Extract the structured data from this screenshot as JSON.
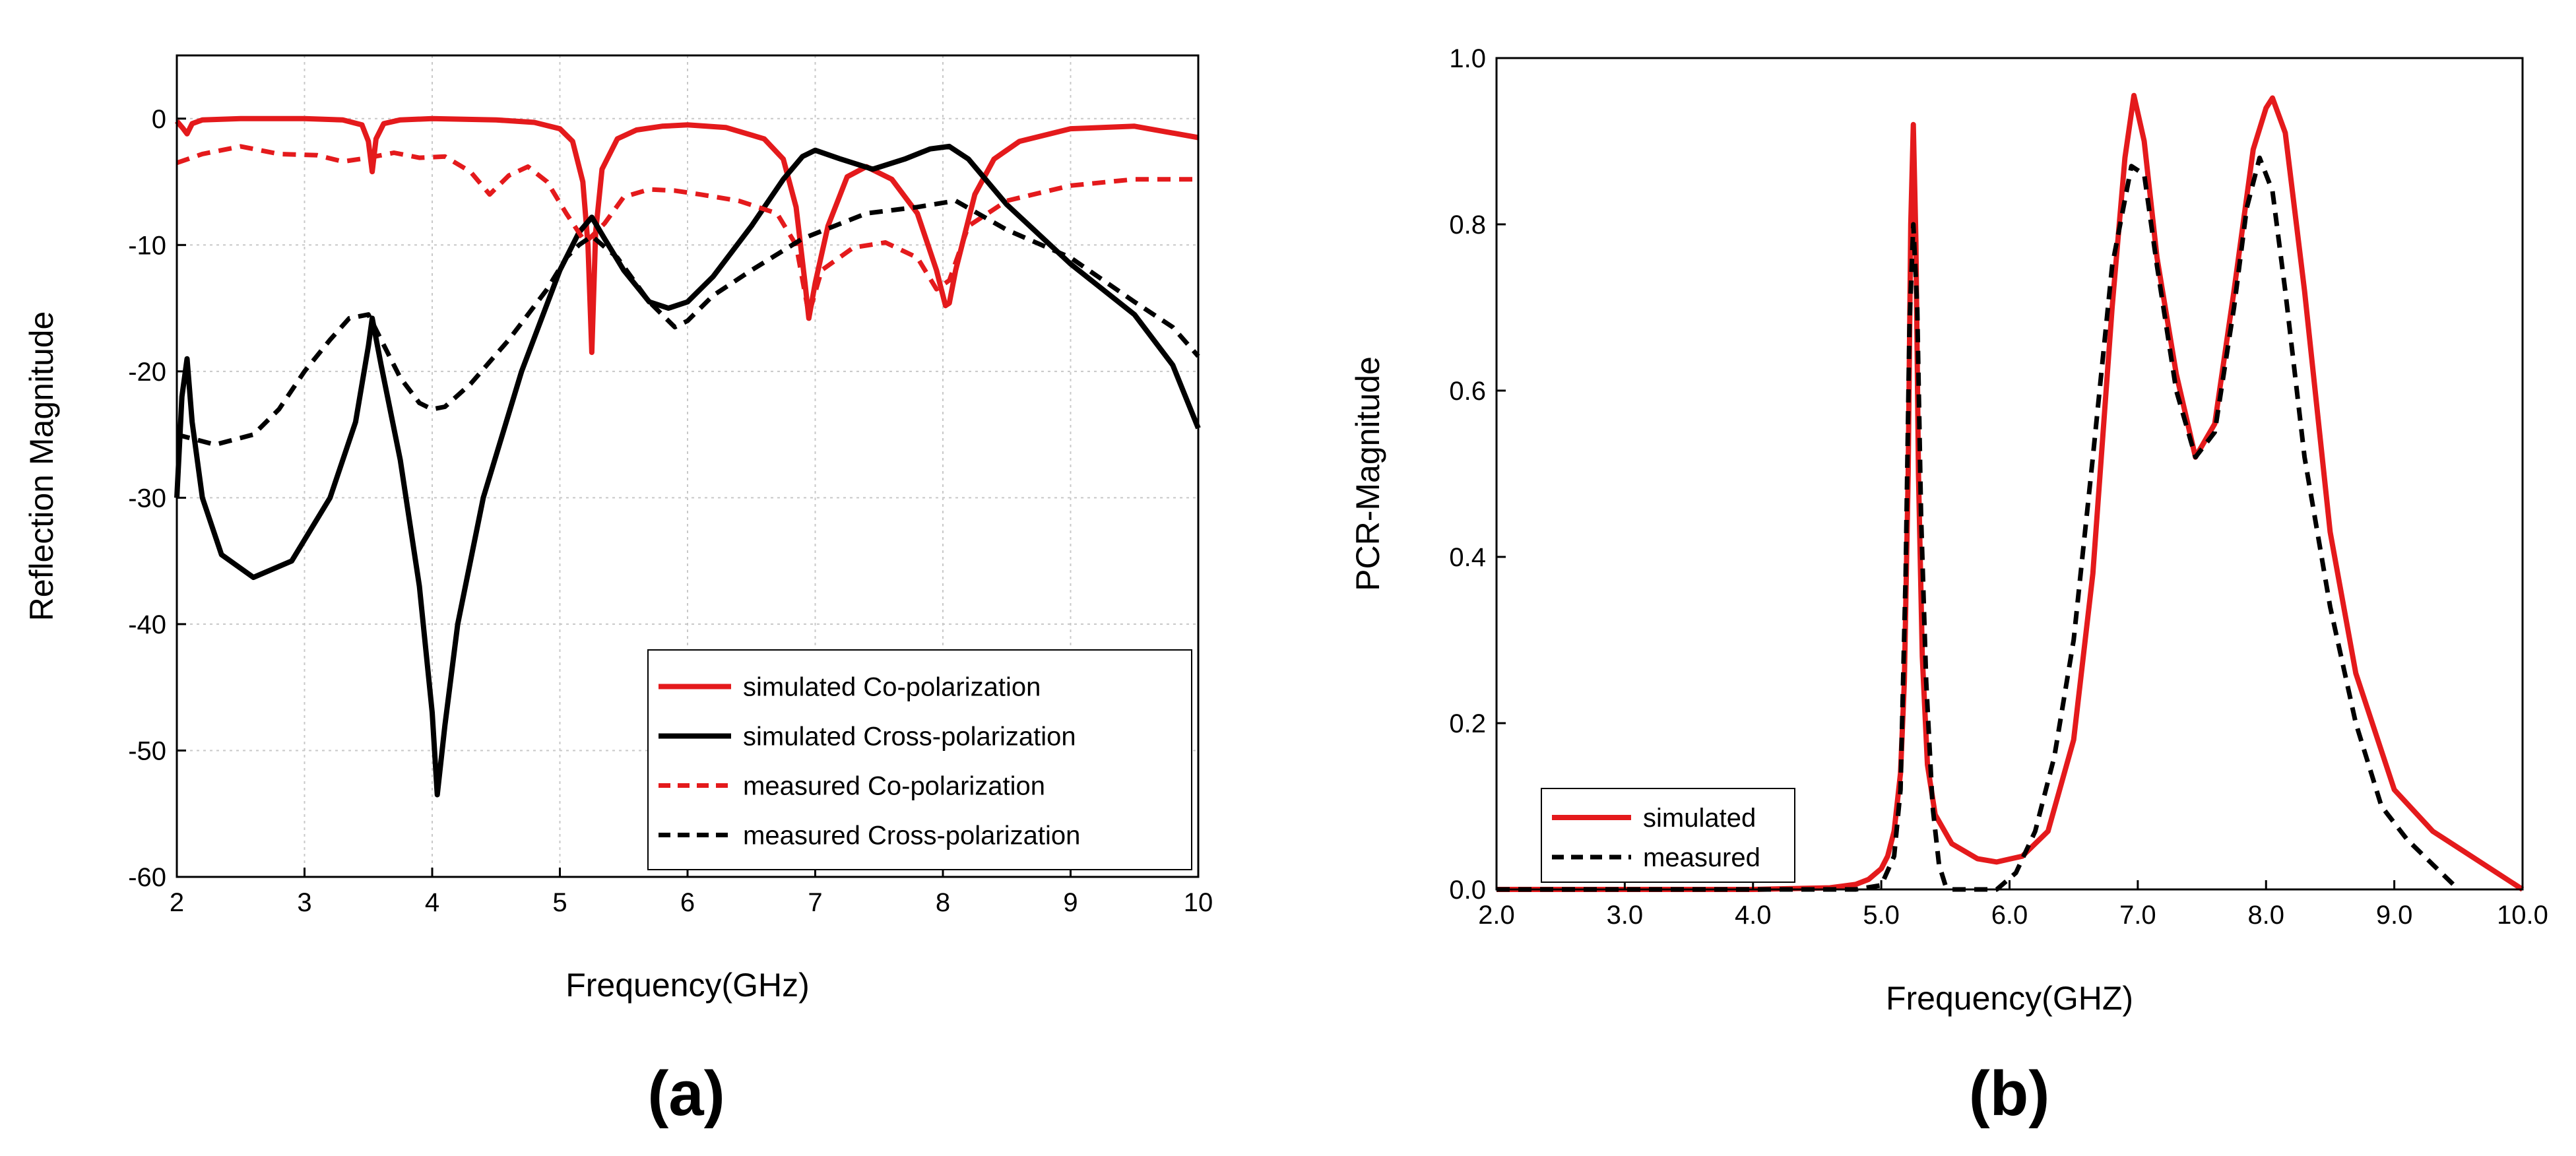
{
  "chart_data": [
    {
      "panel_label": "(a)",
      "type": "line",
      "xlabel": "Frequency(GHz)",
      "ylabel": "Reflection Magnitude",
      "xlim": [
        2,
        10
      ],
      "ylim": [
        -60,
        5
      ],
      "xticks": [
        2,
        3,
        4,
        5,
        6,
        7,
        8,
        9,
        10
      ],
      "yticks": [
        0,
        -10,
        -20,
        -30,
        -40,
        -50,
        -60
      ],
      "grid": true,
      "legend_position": "bottom-right",
      "series": [
        {
          "name": "simulated Co-polarization",
          "color": "#e41a1c",
          "style": "solid",
          "x": [
            2.0,
            2.05,
            2.08,
            2.12,
            2.2,
            2.5,
            3.0,
            3.3,
            3.45,
            3.5,
            3.53,
            3.56,
            3.62,
            3.75,
            4.0,
            4.5,
            4.8,
            5.0,
            5.1,
            5.18,
            5.22,
            5.25,
            5.28,
            5.33,
            5.45,
            5.6,
            5.8,
            6.0,
            6.3,
            6.6,
            6.75,
            6.85,
            6.92,
            6.95,
            7.0,
            7.1,
            7.25,
            7.4,
            7.6,
            7.8,
            7.95,
            8.02,
            8.05,
            8.1,
            8.25,
            8.4,
            8.6,
            9.0,
            9.5,
            10.0
          ],
          "y": [
            -0.2,
            -0.8,
            -1.2,
            -0.4,
            -0.1,
            0.0,
            0.0,
            -0.1,
            -0.5,
            -1.8,
            -4.2,
            -1.6,
            -0.4,
            -0.1,
            0.0,
            -0.1,
            -0.3,
            -0.8,
            -1.8,
            -5.0,
            -10.0,
            -18.5,
            -9.0,
            -4.0,
            -1.6,
            -0.9,
            -0.6,
            -0.5,
            -0.7,
            -1.6,
            -3.2,
            -7.0,
            -13.0,
            -15.8,
            -13.0,
            -8.5,
            -4.6,
            -3.8,
            -4.8,
            -7.5,
            -12.0,
            -14.8,
            -14.6,
            -12.0,
            -6.0,
            -3.2,
            -1.8,
            -0.8,
            -0.6,
            -1.5
          ]
        },
        {
          "name": "simulated Cross-polarization",
          "color": "#000000",
          "style": "solid",
          "x": [
            2.0,
            2.04,
            2.08,
            2.12,
            2.2,
            2.35,
            2.6,
            2.9,
            3.2,
            3.4,
            3.5,
            3.53,
            3.6,
            3.75,
            3.9,
            4.0,
            4.04,
            4.1,
            4.2,
            4.4,
            4.7,
            5.0,
            5.15,
            5.25,
            5.35,
            5.5,
            5.7,
            5.85,
            6.0,
            6.2,
            6.5,
            6.75,
            6.9,
            7.0,
            7.2,
            7.45,
            7.7,
            7.9,
            8.05,
            8.2,
            8.5,
            9.0,
            9.5,
            9.8,
            10.0
          ],
          "y": [
            -30.0,
            -22.0,
            -19.0,
            -24.0,
            -30.0,
            -34.5,
            -36.3,
            -35.0,
            -30.0,
            -24.0,
            -18.0,
            -15.8,
            -19.5,
            -27.0,
            -37.0,
            -47.0,
            -53.5,
            -48.0,
            -40.0,
            -30.0,
            -20.0,
            -12.0,
            -9.0,
            -7.8,
            -9.5,
            -12.0,
            -14.5,
            -15.0,
            -14.5,
            -12.5,
            -8.5,
            -4.8,
            -3.0,
            -2.5,
            -3.2,
            -4.0,
            -3.2,
            -2.4,
            -2.2,
            -3.2,
            -6.8,
            -11.5,
            -15.5,
            -19.5,
            -24.5
          ]
        },
        {
          "name": "measured Co-polarization",
          "color": "#e41a1c",
          "style": "dashed",
          "x": [
            2.0,
            2.2,
            2.5,
            2.8,
            3.1,
            3.3,
            3.5,
            3.7,
            3.9,
            4.1,
            4.3,
            4.45,
            4.6,
            4.75,
            4.9,
            5.05,
            5.2,
            5.35,
            5.5,
            5.7,
            5.9,
            6.1,
            6.4,
            6.7,
            6.85,
            6.95,
            7.05,
            7.3,
            7.55,
            7.8,
            7.95,
            8.05,
            8.2,
            8.5,
            9.0,
            9.5,
            10.0
          ],
          "y": [
            -3.5,
            -2.8,
            -2.2,
            -2.8,
            -2.9,
            -3.4,
            -3.1,
            -2.7,
            -3.1,
            -3.0,
            -4.2,
            -6.0,
            -4.5,
            -3.8,
            -5.0,
            -7.5,
            -9.8,
            -8.3,
            -6.2,
            -5.6,
            -5.7,
            -6.0,
            -6.5,
            -7.5,
            -10.0,
            -15.5,
            -12.0,
            -10.2,
            -9.8,
            -11.0,
            -13.5,
            -12.8,
            -8.5,
            -6.5,
            -5.3,
            -4.8,
            -4.8
          ]
        },
        {
          "name": "measured Cross-polarization",
          "color": "#000000",
          "style": "dashed",
          "x": [
            2.0,
            2.3,
            2.6,
            2.8,
            3.0,
            3.2,
            3.35,
            3.5,
            3.6,
            3.75,
            3.9,
            4.0,
            4.1,
            4.3,
            4.6,
            4.9,
            5.05,
            5.15,
            5.25,
            5.45,
            5.7,
            5.9,
            6.0,
            6.2,
            6.5,
            6.9,
            7.4,
            7.8,
            8.1,
            8.5,
            9.0,
            9.5,
            9.8,
            10.0
          ],
          "y": [
            -25.0,
            -25.8,
            -25.0,
            -23.0,
            -20.0,
            -17.5,
            -15.8,
            -15.5,
            -17.5,
            -20.5,
            -22.5,
            -23.0,
            -22.8,
            -21.0,
            -17.5,
            -13.5,
            -11.0,
            -10.0,
            -9.3,
            -11.0,
            -14.5,
            -16.5,
            -16.0,
            -14.0,
            -12.0,
            -9.5,
            -7.5,
            -7.0,
            -6.5,
            -8.8,
            -11.0,
            -14.5,
            -16.5,
            -18.8
          ]
        }
      ]
    },
    {
      "panel_label": "(b)",
      "type": "line",
      "xlabel": "Frequency(GHZ)",
      "ylabel": "PCR-Magnitude",
      "xlim": [
        2,
        10
      ],
      "ylim": [
        0.0,
        1.0
      ],
      "xticks": [
        2,
        3,
        4,
        5,
        6,
        7,
        8,
        9,
        10
      ],
      "yticks": [
        0.0,
        0.2,
        0.4,
        0.6,
        0.8,
        1.0
      ],
      "tick_format": "0.0",
      "grid": false,
      "legend_position": "bottom-left",
      "series": [
        {
          "name": "simulated",
          "color": "#e41a1c",
          "style": "solid",
          "x": [
            2.0,
            3.0,
            4.0,
            4.6,
            4.8,
            4.9,
            5.0,
            5.05,
            5.1,
            5.15,
            5.18,
            5.21,
            5.23,
            5.25,
            5.27,
            5.29,
            5.32,
            5.36,
            5.42,
            5.55,
            5.75,
            5.9,
            6.1,
            6.3,
            6.5,
            6.65,
            6.8,
            6.9,
            6.97,
            7.05,
            7.15,
            7.3,
            7.45,
            7.6,
            7.75,
            7.9,
            8.0,
            8.05,
            8.15,
            8.3,
            8.5,
            8.7,
            9.0,
            9.3,
            9.6,
            10.0
          ],
          "y": [
            0.0,
            0.0,
            0.0,
            0.002,
            0.006,
            0.012,
            0.025,
            0.04,
            0.07,
            0.14,
            0.25,
            0.5,
            0.8,
            0.92,
            0.78,
            0.5,
            0.28,
            0.15,
            0.09,
            0.055,
            0.037,
            0.033,
            0.04,
            0.07,
            0.18,
            0.38,
            0.7,
            0.88,
            0.955,
            0.9,
            0.76,
            0.62,
            0.52,
            0.56,
            0.72,
            0.89,
            0.94,
            0.952,
            0.91,
            0.72,
            0.43,
            0.26,
            0.12,
            0.07,
            0.04,
            0.0
          ]
        },
        {
          "name": "measured",
          "color": "#000000",
          "style": "dashed",
          "x": [
            2.0,
            3.0,
            4.0,
            4.8,
            5.0,
            5.1,
            5.15,
            5.19,
            5.22,
            5.25,
            5.28,
            5.31,
            5.35,
            5.4,
            5.45,
            5.5,
            5.55,
            5.9,
            6.05,
            6.2,
            6.35,
            6.5,
            6.65,
            6.8,
            6.95,
            7.05,
            7.15,
            7.3,
            7.45,
            7.6,
            7.75,
            7.85,
            7.95,
            8.05,
            8.15,
            8.3,
            8.5,
            8.7,
            8.9,
            9.1,
            9.3,
            9.5
          ],
          "y": [
            0.0,
            0.0,
            0.0,
            0.0,
            0.005,
            0.04,
            0.12,
            0.38,
            0.68,
            0.8,
            0.7,
            0.45,
            0.25,
            0.1,
            0.03,
            0.005,
            0.0,
            0.0,
            0.02,
            0.07,
            0.16,
            0.3,
            0.52,
            0.75,
            0.87,
            0.86,
            0.75,
            0.6,
            0.52,
            0.55,
            0.7,
            0.82,
            0.88,
            0.84,
            0.72,
            0.52,
            0.34,
            0.2,
            0.1,
            0.06,
            0.03,
            0.0
          ]
        }
      ]
    }
  ]
}
